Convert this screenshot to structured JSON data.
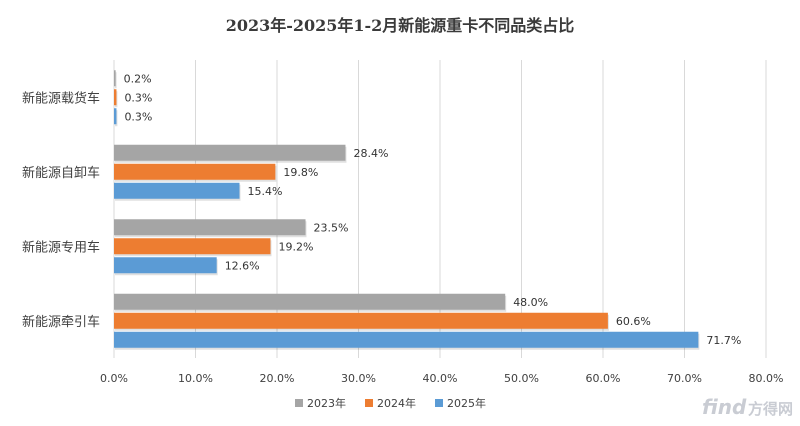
{
  "chart_data": {
    "type": "bar",
    "orientation": "horizontal",
    "title": "2023年-2025年1-2月新能源重卡不同品类占比",
    "categories": [
      "新能源载货车",
      "新能源自卸车",
      "新能源专用车",
      "新能源牵引车"
    ],
    "series": [
      {
        "name": "2023年",
        "color": "#a5a5a5",
        "values": [
          0.2,
          28.4,
          23.5,
          48.0
        ],
        "labels": [
          "0.2%",
          "28.4%",
          "23.5%",
          "48.0%"
        ]
      },
      {
        "name": "2024年",
        "color": "#ed7d31",
        "values": [
          0.3,
          19.8,
          19.2,
          60.6
        ],
        "labels": [
          "0.3%",
          "19.8%",
          "19.2%",
          "60.6%"
        ]
      },
      {
        "name": "2025年",
        "color": "#5b9bd5",
        "values": [
          0.3,
          15.4,
          12.6,
          71.7
        ],
        "labels": [
          "0.3%",
          "15.4%",
          "12.6%",
          "71.7%"
        ]
      }
    ],
    "xlim": [
      0,
      80
    ],
    "ticks": [
      "0.0%",
      "10.0%",
      "20.0%",
      "30.0%",
      "40.0%",
      "50.0%",
      "60.0%",
      "70.0%",
      "80.0%"
    ],
    "grid": true,
    "legend_position": "bottom"
  },
  "watermark": {
    "text": "find",
    "suffix": "方得网"
  }
}
